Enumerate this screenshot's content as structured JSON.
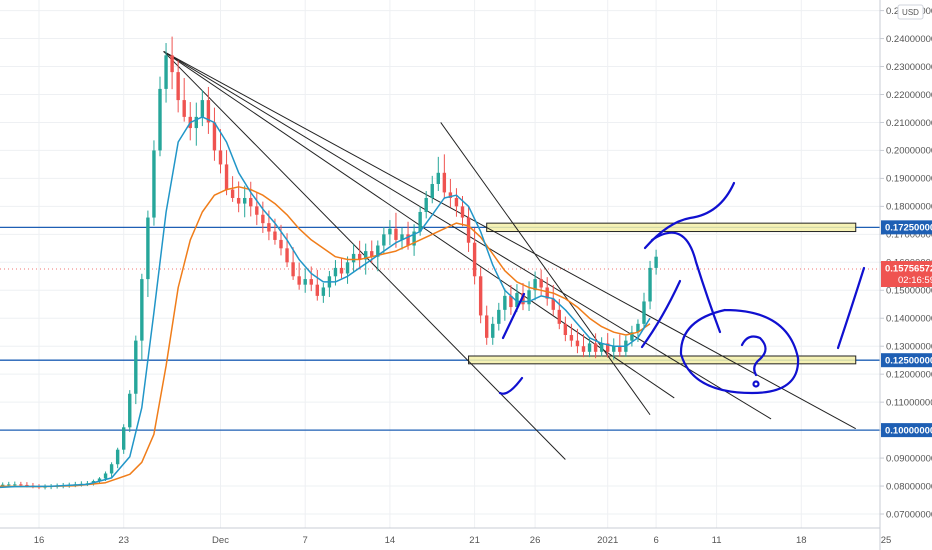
{
  "chart_data": {
    "type": "candlestick",
    "currency_label": "USD",
    "y_ticks": [
      "0.07000000",
      "0.08000000",
      "0.09000000",
      "0.10000000",
      "0.11000000",
      "0.12000000",
      "0.13000000",
      "0.14000000",
      "0.15000000",
      "0.16000000",
      "0.17000000",
      "0.18000000",
      "0.19000000",
      "0.20000000",
      "0.21000000",
      "0.22000000",
      "0.23000000",
      "0.24000000",
      "0.25000000"
    ],
    "y_tick_values": [
      0.07,
      0.08,
      0.09,
      0.1,
      0.11,
      0.12,
      0.13,
      0.14,
      0.15,
      0.16,
      0.17,
      0.18,
      0.19,
      0.2,
      0.21,
      0.22,
      0.23,
      0.24,
      0.25
    ],
    "ylim": [
      0.065,
      0.252
    ],
    "x_ticks": [
      "16",
      "23",
      "Dec",
      "7",
      "14",
      "21",
      "26",
      "2021",
      "6",
      "11",
      "18",
      "25"
    ],
    "x_tick_days": [
      0,
      7,
      15,
      22,
      29,
      36,
      41,
      47,
      51,
      56,
      63,
      70
    ],
    "xlim": [
      -5.5,
      73.5
    ],
    "horizontal_levels": [
      {
        "value": 0.1725,
        "label": "0.17250000"
      },
      {
        "value": 0.125,
        "label": "0.12500000"
      },
      {
        "value": 0.1,
        "label": "0.10000000"
      }
    ],
    "current_price": {
      "label": "0.15756572",
      "countdown": "02:16:59",
      "value": 0.1576
    },
    "colors": {
      "up": "#26a69a",
      "down": "#ef5350",
      "level": "#1e5fb4",
      "ma_fast": "#2196c8",
      "ma_slow": "#f07d1a",
      "drawing": "#1010d0",
      "zone": "#f5f0a8"
    },
    "candles": [
      [
        -5.5,
        0.0788,
        0.0797,
        0.0778,
        0.0791
      ],
      [
        -5,
        0.0791,
        0.0799,
        0.0782,
        0.0794
      ],
      [
        -4.5,
        0.0794,
        0.0803,
        0.0786,
        0.0797
      ],
      [
        -4,
        0.0797,
        0.0807,
        0.0789,
        0.0801
      ],
      [
        -3.5,
        0.0801,
        0.081,
        0.0792,
        0.0803
      ],
      [
        -3,
        0.0803,
        0.0813,
        0.0795,
        0.0805
      ],
      [
        -2.5,
        0.0805,
        0.0815,
        0.0797,
        0.0806
      ],
      [
        -2,
        0.0806,
        0.0816,
        0.0797,
        0.0806
      ],
      [
        -1.5,
        0.0806,
        0.0815,
        0.0796,
        0.0804
      ],
      [
        -1,
        0.0804,
        0.0814,
        0.0795,
        0.0802
      ],
      [
        -0.5,
        0.0802,
        0.0811,
        0.0792,
        0.0799
      ],
      [
        0,
        0.0799,
        0.0807,
        0.0789,
        0.0796
      ],
      [
        0.5,
        0.0796,
        0.0806,
        0.0788,
        0.0798
      ],
      [
        1,
        0.0798,
        0.0807,
        0.0789,
        0.08
      ],
      [
        1.5,
        0.08,
        0.0809,
        0.0791,
        0.0801
      ],
      [
        2,
        0.0801,
        0.0811,
        0.0792,
        0.0803
      ],
      [
        2.5,
        0.0803,
        0.0812,
        0.0794,
        0.0805
      ],
      [
        3,
        0.0805,
        0.0815,
        0.0796,
        0.0806
      ],
      [
        3.5,
        0.0806,
        0.0817,
        0.0798,
        0.0808
      ],
      [
        4,
        0.0808,
        0.0818,
        0.08,
        0.081
      ],
      [
        4.5,
        0.081,
        0.0823,
        0.0802,
        0.0818
      ],
      [
        5,
        0.0818,
        0.0832,
        0.0809,
        0.0827
      ],
      [
        5.5,
        0.0827,
        0.0852,
        0.0818,
        0.0845
      ],
      [
        6,
        0.0845,
        0.0885,
        0.0832,
        0.0878
      ],
      [
        6.5,
        0.0878,
        0.0937,
        0.0864,
        0.093
      ],
      [
        7,
        0.093,
        0.1021,
        0.0915,
        0.101
      ],
      [
        7.5,
        0.101,
        0.1143,
        0.0993,
        0.113
      ],
      [
        8,
        0.113,
        0.1338,
        0.1093,
        0.132
      ],
      [
        8.5,
        0.132,
        0.1559,
        0.1249,
        0.154
      ],
      [
        9,
        0.154,
        0.1785,
        0.1476,
        0.176
      ],
      [
        9.5,
        0.176,
        0.2036,
        0.1731,
        0.2
      ],
      [
        10,
        0.2,
        0.2264,
        0.1979,
        0.222
      ],
      [
        10.5,
        0.222,
        0.2384,
        0.2171,
        0.234
      ],
      [
        11,
        0.234,
        0.2407,
        0.2219,
        0.228
      ],
      [
        11.5,
        0.228,
        0.2322,
        0.2136,
        0.218
      ],
      [
        12,
        0.218,
        0.2259,
        0.2103,
        0.212
      ],
      [
        12.5,
        0.212,
        0.2173,
        0.2036,
        0.208
      ],
      [
        13,
        0.208,
        0.2171,
        0.2017,
        0.212
      ],
      [
        13.5,
        0.212,
        0.2216,
        0.2087,
        0.218
      ],
      [
        14,
        0.218,
        0.2227,
        0.2059,
        0.21
      ],
      [
        14.5,
        0.21,
        0.2153,
        0.1963,
        0.2
      ],
      [
        15,
        0.2,
        0.2076,
        0.1918,
        0.195
      ],
      [
        15.5,
        0.195,
        0.2001,
        0.184,
        0.186
      ],
      [
        16,
        0.186,
        0.1908,
        0.1816,
        0.183
      ],
      [
        16.5,
        0.183,
        0.1889,
        0.1779,
        0.181
      ],
      [
        17,
        0.181,
        0.1874,
        0.1761,
        0.183
      ],
      [
        17.5,
        0.183,
        0.1888,
        0.1764,
        0.18
      ],
      [
        18,
        0.18,
        0.1849,
        0.1733,
        0.177
      ],
      [
        18.5,
        0.177,
        0.1817,
        0.1705,
        0.174
      ],
      [
        19,
        0.174,
        0.1785,
        0.1679,
        0.171
      ],
      [
        19.5,
        0.171,
        0.1756,
        0.1663,
        0.168
      ],
      [
        20,
        0.168,
        0.1734,
        0.1625,
        0.165
      ],
      [
        20.5,
        0.165,
        0.1704,
        0.1583,
        0.16
      ],
      [
        21,
        0.16,
        0.1654,
        0.1537,
        0.155
      ],
      [
        21.5,
        0.155,
        0.1599,
        0.1502,
        0.152
      ],
      [
        22,
        0.152,
        0.1578,
        0.1491,
        0.154
      ],
      [
        22.5,
        0.154,
        0.1585,
        0.1497,
        0.152
      ],
      [
        23,
        0.152,
        0.1573,
        0.1463,
        0.148
      ],
      [
        23.5,
        0.148,
        0.1526,
        0.1455,
        0.151
      ],
      [
        24,
        0.151,
        0.1569,
        0.1476,
        0.155
      ],
      [
        24.5,
        0.155,
        0.1608,
        0.1517,
        0.158
      ],
      [
        25,
        0.158,
        0.1617,
        0.1543,
        0.156
      ],
      [
        25.5,
        0.156,
        0.1621,
        0.1523,
        0.16
      ],
      [
        26,
        0.16,
        0.1664,
        0.1566,
        0.163
      ],
      [
        26.5,
        0.163,
        0.1677,
        0.1575,
        0.161
      ],
      [
        27,
        0.161,
        0.1667,
        0.1556,
        0.164
      ],
      [
        27.5,
        0.164,
        0.1678,
        0.1598,
        0.162
      ],
      [
        28,
        0.162,
        0.1678,
        0.1568,
        0.166
      ],
      [
        28.5,
        0.166,
        0.1726,
        0.1628,
        0.17
      ],
      [
        29,
        0.17,
        0.1751,
        0.1661,
        0.172
      ],
      [
        29.5,
        0.172,
        0.1777,
        0.1652,
        0.168
      ],
      [
        30,
        0.168,
        0.1724,
        0.1646,
        0.17
      ],
      [
        30.5,
        0.17,
        0.1745,
        0.1645,
        0.166
      ],
      [
        31,
        0.166,
        0.1736,
        0.1623,
        0.171
      ],
      [
        31.5,
        0.171,
        0.1799,
        0.1695,
        0.178
      ],
      [
        32,
        0.178,
        0.1855,
        0.1757,
        0.183
      ],
      [
        32.5,
        0.183,
        0.1909,
        0.1811,
        0.188
      ],
      [
        33,
        0.188,
        0.1977,
        0.1855,
        0.192
      ],
      [
        33.5,
        0.192,
        0.1986,
        0.1826,
        0.185
      ],
      [
        34,
        0.185,
        0.1898,
        0.1797,
        0.183
      ],
      [
        34.5,
        0.183,
        0.1865,
        0.1763,
        0.18
      ],
      [
        35,
        0.18,
        0.1837,
        0.1729,
        0.176
      ],
      [
        35.5,
        0.176,
        0.18,
        0.1637,
        0.167
      ],
      [
        36,
        0.167,
        0.1723,
        0.1521,
        0.155
      ],
      [
        36.5,
        0.155,
        0.1582,
        0.1382,
        0.141
      ],
      [
        37,
        0.141,
        0.1445,
        0.1305,
        0.133
      ],
      [
        37.5,
        0.133,
        0.1405,
        0.1305,
        0.138
      ],
      [
        38,
        0.138,
        0.1455,
        0.1356,
        0.143
      ],
      [
        38.5,
        0.143,
        0.1506,
        0.1391,
        0.148
      ],
      [
        39,
        0.148,
        0.1519,
        0.1412,
        0.144
      ],
      [
        39.5,
        0.144,
        0.1522,
        0.1423,
        0.149
      ],
      [
        40,
        0.149,
        0.1526,
        0.1429,
        0.145
      ],
      [
        40.5,
        0.145,
        0.1532,
        0.1426,
        0.15
      ],
      [
        41,
        0.15,
        0.1567,
        0.1464,
        0.154
      ],
      [
        41.5,
        0.154,
        0.1574,
        0.1482,
        0.151
      ],
      [
        42,
        0.151,
        0.1547,
        0.1445,
        0.147
      ],
      [
        42.5,
        0.147,
        0.1519,
        0.141,
        0.143
      ],
      [
        43,
        0.143,
        0.1469,
        0.1361,
        0.138
      ],
      [
        43.5,
        0.138,
        0.1406,
        0.1318,
        0.134
      ],
      [
        44,
        0.134,
        0.138,
        0.1298,
        0.132
      ],
      [
        44.5,
        0.132,
        0.1362,
        0.1275,
        0.13
      ],
      [
        45,
        0.13,
        0.1343,
        0.1261,
        0.128
      ],
      [
        45.5,
        0.128,
        0.133,
        0.1261,
        0.131
      ],
      [
        46,
        0.131,
        0.1346,
        0.1257,
        0.128
      ],
      [
        46.5,
        0.128,
        0.1332,
        0.1264,
        0.131
      ],
      [
        47,
        0.131,
        0.1347,
        0.1259,
        0.128
      ],
      [
        47.5,
        0.128,
        0.1328,
        0.1252,
        0.13
      ],
      [
        48,
        0.13,
        0.1342,
        0.1262,
        0.128
      ],
      [
        48.5,
        0.128,
        0.1337,
        0.1262,
        0.132
      ],
      [
        49,
        0.132,
        0.1373,
        0.1299,
        0.135
      ],
      [
        49.5,
        0.135,
        0.1396,
        0.1315,
        0.138
      ],
      [
        50,
        0.138,
        0.1491,
        0.136,
        0.146
      ],
      [
        50.5,
        0.146,
        0.1605,
        0.1432,
        0.158
      ],
      [
        51,
        0.158,
        0.1645,
        0.1556,
        0.162
      ]
    ],
    "ma_fast": [
      [
        -5.5,
        0.079
      ],
      [
        -2,
        0.0798
      ],
      [
        1,
        0.0799
      ],
      [
        4,
        0.0806
      ],
      [
        6,
        0.0829
      ],
      [
        7.5,
        0.0905
      ],
      [
        8.5,
        0.108
      ],
      [
        9.5,
        0.142
      ],
      [
        10.5,
        0.178
      ],
      [
        11.5,
        0.203
      ],
      [
        12.5,
        0.21
      ],
      [
        13.5,
        0.212
      ],
      [
        14.5,
        0.21
      ],
      [
        15.5,
        0.203
      ],
      [
        16.5,
        0.192
      ],
      [
        17.5,
        0.185
      ],
      [
        18.5,
        0.179
      ],
      [
        19.5,
        0.174
      ],
      [
        20.5,
        0.168
      ],
      [
        21.5,
        0.161
      ],
      [
        22.5,
        0.156
      ],
      [
        23.5,
        0.153
      ],
      [
        24.5,
        0.153
      ],
      [
        25.5,
        0.155
      ],
      [
        26.5,
        0.158
      ],
      [
        27.5,
        0.161
      ],
      [
        28.5,
        0.164
      ],
      [
        29.5,
        0.167
      ],
      [
        30.5,
        0.169
      ],
      [
        31.5,
        0.171
      ],
      [
        32.5,
        0.177
      ],
      [
        33.5,
        0.183
      ],
      [
        34.5,
        0.184
      ],
      [
        35.5,
        0.18
      ],
      [
        36.5,
        0.171
      ],
      [
        37.5,
        0.159
      ],
      [
        38.5,
        0.15
      ],
      [
        39.5,
        0.146
      ],
      [
        40.5,
        0.146
      ],
      [
        41.5,
        0.148
      ],
      [
        42.5,
        0.147
      ],
      [
        43.5,
        0.143
      ],
      [
        44.5,
        0.138
      ],
      [
        45.5,
        0.133
      ],
      [
        46.5,
        0.131
      ],
      [
        47.5,
        0.13
      ],
      [
        48.5,
        0.13
      ],
      [
        49.5,
        0.133
      ],
      [
        50.5,
        0.14
      ]
    ],
    "ma_slow": [
      [
        -5.5,
        0.08
      ],
      [
        0,
        0.0798
      ],
      [
        3,
        0.0801
      ],
      [
        5.5,
        0.0812
      ],
      [
        7.5,
        0.0842
      ],
      [
        8.5,
        0.0885
      ],
      [
        9.5,
        0.0985
      ],
      [
        10.5,
        0.123
      ],
      [
        11.5,
        0.151
      ],
      [
        12.5,
        0.168
      ],
      [
        13.5,
        0.178
      ],
      [
        14.5,
        0.184
      ],
      [
        15.5,
        0.186
      ],
      [
        16.5,
        0.187
      ],
      [
        17.5,
        0.186
      ],
      [
        18.5,
        0.184
      ],
      [
        19.5,
        0.181
      ],
      [
        20.5,
        0.177
      ],
      [
        21.5,
        0.172
      ],
      [
        22.5,
        0.168
      ],
      [
        23.5,
        0.165
      ],
      [
        24.5,
        0.162
      ],
      [
        25.5,
        0.161
      ],
      [
        26.5,
        0.161
      ],
      [
        27.5,
        0.162
      ],
      [
        28.5,
        0.163
      ],
      [
        29.5,
        0.164
      ],
      [
        30.5,
        0.166
      ],
      [
        31.5,
        0.168
      ],
      [
        32.5,
        0.17
      ],
      [
        33.5,
        0.172
      ],
      [
        34.5,
        0.174
      ],
      [
        35.5,
        0.173
      ],
      [
        36.5,
        0.169
      ],
      [
        37.5,
        0.163
      ],
      [
        38.5,
        0.157
      ],
      [
        39.5,
        0.153
      ],
      [
        40.5,
        0.151
      ],
      [
        41.5,
        0.15
      ],
      [
        42.5,
        0.149
      ],
      [
        43.5,
        0.147
      ],
      [
        44.5,
        0.144
      ],
      [
        45.5,
        0.14
      ],
      [
        46.5,
        0.137
      ],
      [
        47.5,
        0.135
      ],
      [
        48.5,
        0.134
      ],
      [
        49.5,
        0.135
      ],
      [
        50.5,
        0.138
      ]
    ],
    "trendlines": [
      {
        "from": [
          10.3,
          0.2354
        ],
        "to": [
          43.5,
          0.0895
        ]
      },
      {
        "from": [
          10.3,
          0.2354
        ],
        "to": [
          52.5,
          0.1115
        ]
      },
      {
        "from": [
          10.3,
          0.2354
        ],
        "to": [
          60.5,
          0.104
        ]
      },
      {
        "from": [
          10.3,
          0.2354
        ],
        "to": [
          67.5,
          0.1005
        ]
      },
      {
        "from": [
          33.2,
          0.21
        ],
        "to": [
          50.5,
          0.1055
        ]
      }
    ],
    "zones": [
      {
        "x0": 37,
        "x1": 67.5,
        "y0": 0.171,
        "y1": 0.174
      },
      {
        "x0": 35.5,
        "x1": 67.5,
        "y0": 0.1237,
        "y1": 0.1265
      }
    ]
  }
}
